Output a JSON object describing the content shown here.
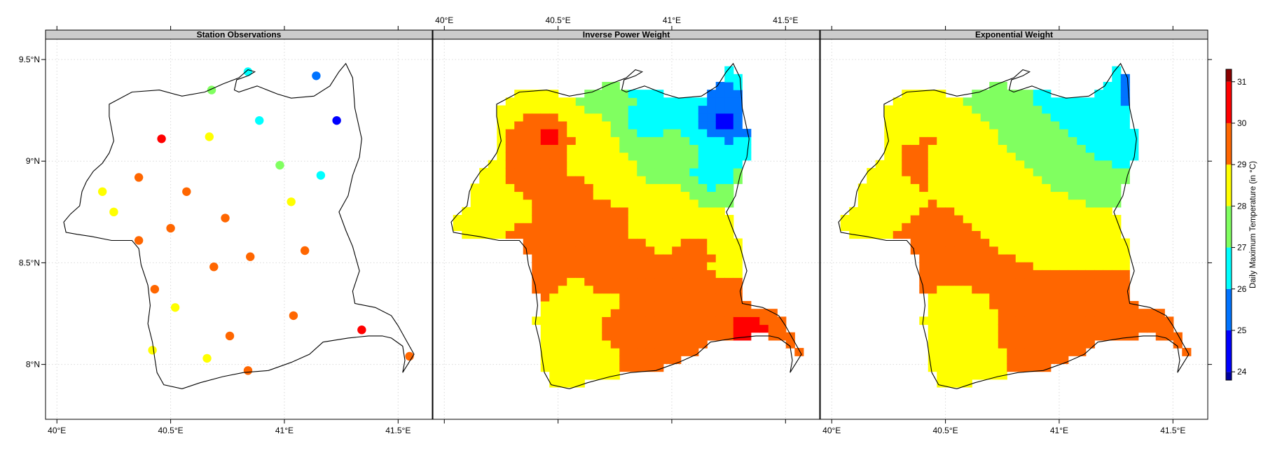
{
  "chart_data": {
    "type": "map",
    "panels": [
      {
        "title": "Station Observations",
        "kind": "points"
      },
      {
        "title": "Inverse Power Weight",
        "kind": "grid"
      },
      {
        "title": "Exponential Weight",
        "kind": "grid"
      }
    ],
    "x_ticks": [
      {
        "value": 40.0,
        "label": "40°E"
      },
      {
        "value": 40.5,
        "label": "40.5°E"
      },
      {
        "value": 41.0,
        "label": "41°E"
      },
      {
        "value": 41.5,
        "label": "41.5°E"
      }
    ],
    "y_ticks": [
      {
        "value": 8.0,
        "label": "8°N"
      },
      {
        "value": 8.5,
        "label": "8.5°N"
      },
      {
        "value": 9.0,
        "label": "9°N"
      },
      {
        "value": 9.5,
        "label": "9.5°N"
      }
    ],
    "xlim": [
      39.95,
      41.65
    ],
    "ylim": [
      7.73,
      9.6
    ],
    "grid": true,
    "colorbar": {
      "title": "Daily Maximum Temperature (in °C)",
      "breaks": [
        23.8,
        24,
        25,
        26,
        27,
        28,
        29,
        30,
        31,
        31.3
      ],
      "colors": [
        "#0000a0",
        "#0000ff",
        "#0073ff",
        "#00ffff",
        "#80ff60",
        "#ffff00",
        "#ff6600",
        "#ff0000",
        "#8b0000"
      ],
      "tick_labels": [
        "24",
        "25",
        "26",
        "27",
        "28",
        "29",
        "30",
        "31"
      ],
      "tick_values": [
        24,
        25,
        26,
        27,
        28,
        29,
        30,
        31
      ],
      "position": "right"
    },
    "boundary": [
      [
        40.23,
        9.28
      ],
      [
        40.33,
        9.34
      ],
      [
        40.45,
        9.35
      ],
      [
        40.55,
        9.32
      ],
      [
        40.65,
        9.34
      ],
      [
        40.73,
        9.38
      ],
      [
        40.8,
        9.41
      ],
      [
        40.84,
        9.45
      ],
      [
        40.87,
        9.44
      ],
      [
        40.84,
        9.42
      ],
      [
        40.79,
        9.4
      ],
      [
        40.78,
        9.35
      ],
      [
        40.8,
        9.34
      ],
      [
        40.88,
        9.37
      ],
      [
        40.97,
        9.33
      ],
      [
        41.03,
        9.31
      ],
      [
        41.13,
        9.32
      ],
      [
        41.2,
        9.37
      ],
      [
        41.24,
        9.44
      ],
      [
        41.27,
        9.48
      ],
      [
        41.3,
        9.41
      ],
      [
        41.31,
        9.26
      ],
      [
        41.34,
        9.11
      ],
      [
        41.33,
        9.02
      ],
      [
        41.3,
        8.93
      ],
      [
        41.28,
        8.83
      ],
      [
        41.24,
        8.75
      ],
      [
        41.27,
        8.66
      ],
      [
        41.3,
        8.58
      ],
      [
        41.33,
        8.46
      ],
      [
        41.3,
        8.36
      ],
      [
        41.31,
        8.3
      ],
      [
        41.4,
        8.28
      ],
      [
        41.47,
        8.24
      ],
      [
        41.5,
        8.19
      ],
      [
        41.53,
        8.13
      ],
      [
        41.55,
        8.09
      ],
      [
        41.57,
        8.05
      ],
      [
        41.52,
        7.96
      ],
      [
        41.53,
        8.02
      ],
      [
        41.52,
        8.09
      ],
      [
        41.47,
        8.13
      ],
      [
        41.43,
        8.14
      ],
      [
        41.37,
        8.14
      ],
      [
        41.28,
        8.13
      ],
      [
        41.17,
        8.11
      ],
      [
        41.11,
        8.05
      ],
      [
        41.03,
        8.01
      ],
      [
        40.93,
        7.97
      ],
      [
        40.82,
        7.96
      ],
      [
        40.73,
        7.94
      ],
      [
        40.63,
        7.91
      ],
      [
        40.55,
        7.88
      ],
      [
        40.47,
        7.9
      ],
      [
        40.44,
        7.96
      ],
      [
        40.43,
        8.03
      ],
      [
        40.42,
        8.11
      ],
      [
        40.4,
        8.2
      ],
      [
        40.41,
        8.29
      ],
      [
        40.4,
        8.39
      ],
      [
        40.37,
        8.49
      ],
      [
        40.36,
        8.57
      ],
      [
        40.33,
        8.61
      ],
      [
        40.24,
        8.61
      ],
      [
        40.15,
        8.63
      ],
      [
        40.09,
        8.64
      ],
      [
        40.04,
        8.65
      ],
      [
        40.03,
        8.7
      ],
      [
        40.06,
        8.74
      ],
      [
        40.1,
        8.78
      ],
      [
        40.11,
        8.85
      ],
      [
        40.13,
        8.9
      ],
      [
        40.16,
        8.95
      ],
      [
        40.2,
        8.99
      ],
      [
        40.23,
        9.04
      ],
      [
        40.25,
        9.1
      ],
      [
        40.24,
        9.16
      ],
      [
        40.23,
        9.22
      ]
    ],
    "stations": [
      {
        "lon": 40.84,
        "lat": 9.44,
        "temp": 26.2
      },
      {
        "lon": 41.14,
        "lat": 9.42,
        "temp": 25.5
      },
      {
        "lon": 40.68,
        "lat": 9.35,
        "temp": 27.5
      },
      {
        "lon": 40.89,
        "lat": 9.2,
        "temp": 26.3
      },
      {
        "lon": 41.23,
        "lat": 9.2,
        "temp": 24.5
      },
      {
        "lon": 40.46,
        "lat": 9.11,
        "temp": 30.3
      },
      {
        "lon": 40.67,
        "lat": 9.12,
        "temp": 28.3
      },
      {
        "lon": 40.98,
        "lat": 8.98,
        "temp": 27.6
      },
      {
        "lon": 41.16,
        "lat": 8.93,
        "temp": 26.3
      },
      {
        "lon": 40.36,
        "lat": 8.92,
        "temp": 29.4
      },
      {
        "lon": 40.2,
        "lat": 8.85,
        "temp": 28.5
      },
      {
        "lon": 40.57,
        "lat": 8.85,
        "temp": 29.3
      },
      {
        "lon": 41.03,
        "lat": 8.8,
        "temp": 28.4
      },
      {
        "lon": 40.25,
        "lat": 8.75,
        "temp": 28.5
      },
      {
        "lon": 40.74,
        "lat": 8.72,
        "temp": 29.3
      },
      {
        "lon": 40.5,
        "lat": 8.67,
        "temp": 29.2
      },
      {
        "lon": 40.36,
        "lat": 8.61,
        "temp": 29.4
      },
      {
        "lon": 41.09,
        "lat": 8.56,
        "temp": 29.3
      },
      {
        "lon": 40.85,
        "lat": 8.53,
        "temp": 29.2
      },
      {
        "lon": 40.69,
        "lat": 8.48,
        "temp": 29.3
      },
      {
        "lon": 40.43,
        "lat": 8.37,
        "temp": 29.4
      },
      {
        "lon": 40.52,
        "lat": 8.28,
        "temp": 28.4
      },
      {
        "lon": 41.04,
        "lat": 8.24,
        "temp": 29.3
      },
      {
        "lon": 41.34,
        "lat": 8.17,
        "temp": 30.4
      },
      {
        "lon": 40.76,
        "lat": 8.14,
        "temp": 29.3
      },
      {
        "lon": 40.42,
        "lat": 8.07,
        "temp": 28.4
      },
      {
        "lon": 40.66,
        "lat": 8.03,
        "temp": 28.4
      },
      {
        "lon": 41.55,
        "lat": 8.04,
        "temp": 29.4
      },
      {
        "lon": 40.84,
        "lat": 7.97,
        "temp": 29.3
      }
    ],
    "grid_cells_deg": 0.0385
  }
}
